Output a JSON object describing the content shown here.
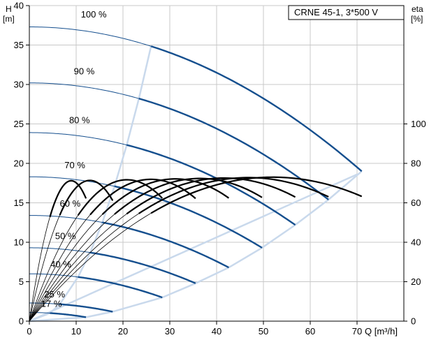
{
  "chart_data": {
    "type": "line",
    "title": "CRNE 45-1, 3*500 V",
    "xlabel": "Q [m³/h]",
    "ylabel_left_name": "H",
    "ylabel_left_unit": "[m]",
    "ylabel_right_name": "eta",
    "ylabel_right_unit": "[%]",
    "xlim": [
      0,
      80
    ],
    "ylim_left": [
      0,
      40
    ],
    "ylim_right": [
      0,
      100
    ],
    "x_ticks": [
      0,
      10,
      20,
      30,
      40,
      50,
      60,
      70
    ],
    "y_left_ticks": [
      0,
      5,
      10,
      15,
      20,
      25,
      30,
      35,
      40
    ],
    "y_right_ticks": [
      0,
      20,
      40,
      60,
      80,
      100
    ],
    "grid": true,
    "colors": {
      "head_curves": "#154f8e",
      "operating_limits": "#c9d9ec",
      "efficiency_curves": "#000000"
    },
    "speed_curves": [
      {
        "label": "100 %",
        "shutoff_head": 37.3,
        "q_max": 71.0,
        "h_at_q_max": 19.0,
        "thick_from_q": 26.0,
        "label_q": 11,
        "label_h": 38.5
      },
      {
        "label": "90 %",
        "shutoff_head": 30.2,
        "q_max": 63.9,
        "h_at_q_max": 15.4,
        "thick_from_q": 23.4,
        "label_q": 9.5,
        "label_h": 31.3
      },
      {
        "label": "80 %",
        "shutoff_head": 23.9,
        "q_max": 56.8,
        "h_at_q_max": 12.2,
        "thick_from_q": 20.8,
        "label_q": 8.5,
        "label_h": 25.1
      },
      {
        "label": "70 %",
        "shutoff_head": 18.3,
        "q_max": 49.7,
        "h_at_q_max": 9.3,
        "thick_from_q": 18.2,
        "label_q": 7.5,
        "label_h": 19.4
      },
      {
        "label": "60 %",
        "shutoff_head": 13.4,
        "q_max": 42.6,
        "h_at_q_max": 6.8,
        "thick_from_q": 15.6,
        "label_q": 6.5,
        "label_h": 14.5
      },
      {
        "label": "50 %",
        "shutoff_head": 9.3,
        "q_max": 35.5,
        "h_at_q_max": 4.8,
        "thick_from_q": 13.0,
        "label_q": 5.5,
        "label_h": 10.4
      },
      {
        "label": "40 %",
        "shutoff_head": 6.0,
        "q_max": 28.4,
        "h_at_q_max": 3.0,
        "thick_from_q": 10.4,
        "label_q": 4.5,
        "label_h": 6.8
      },
      {
        "label": "25 %",
        "shutoff_head": 2.3,
        "q_max": 17.8,
        "h_at_q_max": 1.2,
        "thick_from_q": 6.5,
        "label_q": 3.2,
        "label_h": 3.0
      },
      {
        "label": "17 %",
        "shutoff_head": 1.1,
        "q_max": 12.1,
        "h_at_q_max": 0.5,
        "thick_from_q": 4.4,
        "label_q": 2.5,
        "label_h": 1.8
      }
    ],
    "efficiency_peak_percent": 73
  }
}
